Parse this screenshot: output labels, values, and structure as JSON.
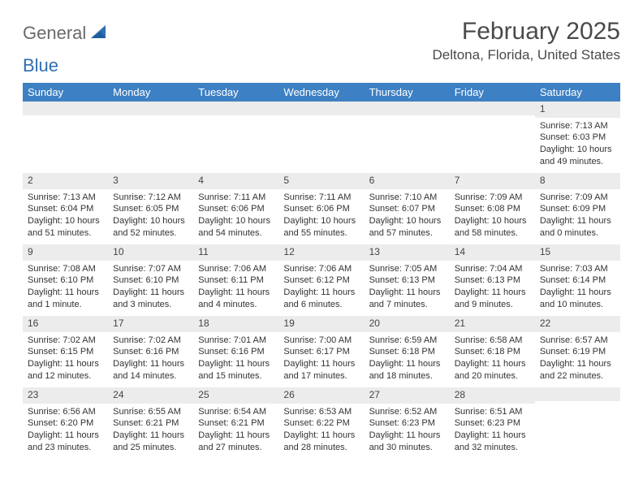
{
  "brand": {
    "part1": "General",
    "part2": "Blue"
  },
  "title": "February 2025",
  "location": "Deltona, Florida, United States",
  "colors": {
    "header_bg": "#3d80c3",
    "header_fg": "#ffffff",
    "daybar_bg": "#ececec",
    "text": "#333333",
    "brand_gray": "#6a6a6a",
    "brand_blue": "#2f6fb0"
  },
  "weekdays": [
    "Sunday",
    "Monday",
    "Tuesday",
    "Wednesday",
    "Thursday",
    "Friday",
    "Saturday"
  ],
  "weeks": [
    [
      {
        "n": "",
        "lines": [
          "",
          "",
          "",
          ""
        ]
      },
      {
        "n": "",
        "lines": [
          "",
          "",
          "",
          ""
        ]
      },
      {
        "n": "",
        "lines": [
          "",
          "",
          "",
          ""
        ]
      },
      {
        "n": "",
        "lines": [
          "",
          "",
          "",
          ""
        ]
      },
      {
        "n": "",
        "lines": [
          "",
          "",
          "",
          ""
        ]
      },
      {
        "n": "",
        "lines": [
          "",
          "",
          "",
          ""
        ]
      },
      {
        "n": "1",
        "lines": [
          "Sunrise: 7:13 AM",
          "Sunset: 6:03 PM",
          "Daylight: 10 hours",
          "and 49 minutes."
        ]
      }
    ],
    [
      {
        "n": "2",
        "lines": [
          "Sunrise: 7:13 AM",
          "Sunset: 6:04 PM",
          "Daylight: 10 hours",
          "and 51 minutes."
        ]
      },
      {
        "n": "3",
        "lines": [
          "Sunrise: 7:12 AM",
          "Sunset: 6:05 PM",
          "Daylight: 10 hours",
          "and 52 minutes."
        ]
      },
      {
        "n": "4",
        "lines": [
          "Sunrise: 7:11 AM",
          "Sunset: 6:06 PM",
          "Daylight: 10 hours",
          "and 54 minutes."
        ]
      },
      {
        "n": "5",
        "lines": [
          "Sunrise: 7:11 AM",
          "Sunset: 6:06 PM",
          "Daylight: 10 hours",
          "and 55 minutes."
        ]
      },
      {
        "n": "6",
        "lines": [
          "Sunrise: 7:10 AM",
          "Sunset: 6:07 PM",
          "Daylight: 10 hours",
          "and 57 minutes."
        ]
      },
      {
        "n": "7",
        "lines": [
          "Sunrise: 7:09 AM",
          "Sunset: 6:08 PM",
          "Daylight: 10 hours",
          "and 58 minutes."
        ]
      },
      {
        "n": "8",
        "lines": [
          "Sunrise: 7:09 AM",
          "Sunset: 6:09 PM",
          "Daylight: 11 hours",
          "and 0 minutes."
        ]
      }
    ],
    [
      {
        "n": "9",
        "lines": [
          "Sunrise: 7:08 AM",
          "Sunset: 6:10 PM",
          "Daylight: 11 hours",
          "and 1 minute."
        ]
      },
      {
        "n": "10",
        "lines": [
          "Sunrise: 7:07 AM",
          "Sunset: 6:10 PM",
          "Daylight: 11 hours",
          "and 3 minutes."
        ]
      },
      {
        "n": "11",
        "lines": [
          "Sunrise: 7:06 AM",
          "Sunset: 6:11 PM",
          "Daylight: 11 hours",
          "and 4 minutes."
        ]
      },
      {
        "n": "12",
        "lines": [
          "Sunrise: 7:06 AM",
          "Sunset: 6:12 PM",
          "Daylight: 11 hours",
          "and 6 minutes."
        ]
      },
      {
        "n": "13",
        "lines": [
          "Sunrise: 7:05 AM",
          "Sunset: 6:13 PM",
          "Daylight: 11 hours",
          "and 7 minutes."
        ]
      },
      {
        "n": "14",
        "lines": [
          "Sunrise: 7:04 AM",
          "Sunset: 6:13 PM",
          "Daylight: 11 hours",
          "and 9 minutes."
        ]
      },
      {
        "n": "15",
        "lines": [
          "Sunrise: 7:03 AM",
          "Sunset: 6:14 PM",
          "Daylight: 11 hours",
          "and 10 minutes."
        ]
      }
    ],
    [
      {
        "n": "16",
        "lines": [
          "Sunrise: 7:02 AM",
          "Sunset: 6:15 PM",
          "Daylight: 11 hours",
          "and 12 minutes."
        ]
      },
      {
        "n": "17",
        "lines": [
          "Sunrise: 7:02 AM",
          "Sunset: 6:16 PM",
          "Daylight: 11 hours",
          "and 14 minutes."
        ]
      },
      {
        "n": "18",
        "lines": [
          "Sunrise: 7:01 AM",
          "Sunset: 6:16 PM",
          "Daylight: 11 hours",
          "and 15 minutes."
        ]
      },
      {
        "n": "19",
        "lines": [
          "Sunrise: 7:00 AM",
          "Sunset: 6:17 PM",
          "Daylight: 11 hours",
          "and 17 minutes."
        ]
      },
      {
        "n": "20",
        "lines": [
          "Sunrise: 6:59 AM",
          "Sunset: 6:18 PM",
          "Daylight: 11 hours",
          "and 18 minutes."
        ]
      },
      {
        "n": "21",
        "lines": [
          "Sunrise: 6:58 AM",
          "Sunset: 6:18 PM",
          "Daylight: 11 hours",
          "and 20 minutes."
        ]
      },
      {
        "n": "22",
        "lines": [
          "Sunrise: 6:57 AM",
          "Sunset: 6:19 PM",
          "Daylight: 11 hours",
          "and 22 minutes."
        ]
      }
    ],
    [
      {
        "n": "23",
        "lines": [
          "Sunrise: 6:56 AM",
          "Sunset: 6:20 PM",
          "Daylight: 11 hours",
          "and 23 minutes."
        ]
      },
      {
        "n": "24",
        "lines": [
          "Sunrise: 6:55 AM",
          "Sunset: 6:21 PM",
          "Daylight: 11 hours",
          "and 25 minutes."
        ]
      },
      {
        "n": "25",
        "lines": [
          "Sunrise: 6:54 AM",
          "Sunset: 6:21 PM",
          "Daylight: 11 hours",
          "and 27 minutes."
        ]
      },
      {
        "n": "26",
        "lines": [
          "Sunrise: 6:53 AM",
          "Sunset: 6:22 PM",
          "Daylight: 11 hours",
          "and 28 minutes."
        ]
      },
      {
        "n": "27",
        "lines": [
          "Sunrise: 6:52 AM",
          "Sunset: 6:23 PM",
          "Daylight: 11 hours",
          "and 30 minutes."
        ]
      },
      {
        "n": "28",
        "lines": [
          "Sunrise: 6:51 AM",
          "Sunset: 6:23 PM",
          "Daylight: 11 hours",
          "and 32 minutes."
        ]
      },
      {
        "n": "",
        "lines": [
          "",
          "",
          "",
          ""
        ]
      }
    ]
  ]
}
